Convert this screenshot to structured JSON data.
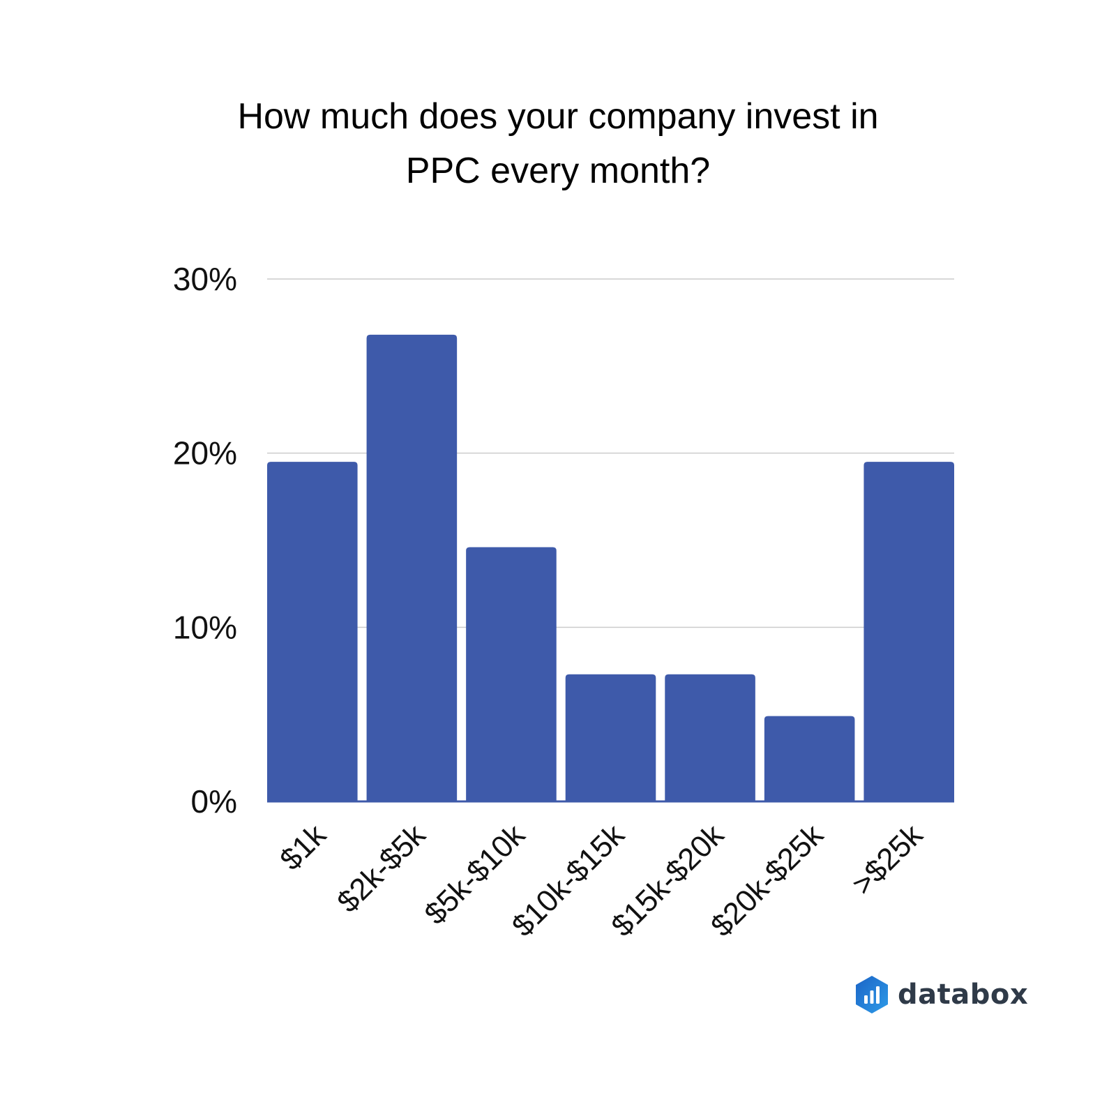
{
  "chart_data": {
    "type": "bar",
    "title_lines": [
      "How much does your company invest in",
      "PPC every month?"
    ],
    "categories": [
      "$1k",
      "$2k-$5k",
      "$5k-$10k",
      "$10k-$15k",
      "$15k-$20k",
      "$20k-$25k",
      ">$25k"
    ],
    "values": [
      19.5,
      26.8,
      14.6,
      7.3,
      7.3,
      4.9,
      19.5
    ],
    "unit": "%",
    "ylim": [
      0,
      30
    ],
    "yticks": [
      0,
      10,
      20,
      30
    ],
    "ytick_labels": [
      "0%",
      "10%",
      "20%",
      "30%"
    ],
    "xlabel": "",
    "ylabel": "",
    "grid": true,
    "legend": "none",
    "bar_color": "#3e5aaa",
    "grid_color": "#cccccc"
  },
  "brand": {
    "name": "databox",
    "logo_icon": "databox-logo-icon",
    "logo_colors": [
      "#1b64c6",
      "#2e9be8"
    ]
  }
}
